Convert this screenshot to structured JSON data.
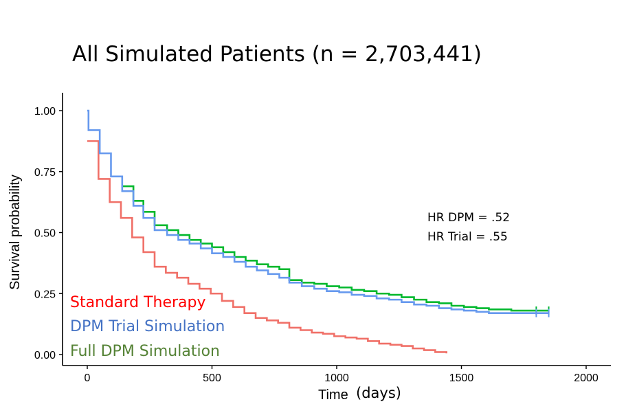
{
  "chart_data": {
    "type": "line",
    "title": "All Simulated Patients (n = 2,703,441)",
    "xlabel": "Time",
    "xlabel_suffix": "(days)",
    "ylabel": "Survival probability",
    "xlim": [
      -90,
      2100
    ],
    "ylim": [
      -0.05,
      1.05
    ],
    "x_ticks": [
      0,
      500,
      1000,
      1500,
      2000
    ],
    "y_ticks": [
      0.0,
      0.25,
      0.5,
      0.75,
      1.0
    ],
    "y_tick_labels": [
      "0.00",
      "0.25",
      "0.50",
      "0.75",
      "1.00"
    ],
    "annotations": [
      "HR DPM = .52",
      "HR Trial = .55"
    ],
    "legend_position": "bottom-left",
    "series": [
      {
        "name": "Standard Therapy",
        "color": "#f07068",
        "legend_color": "#ff0000",
        "x": [
          0,
          45,
          90,
          135,
          180,
          225,
          270,
          315,
          360,
          405,
          450,
          495,
          540,
          585,
          630,
          675,
          720,
          765,
          810,
          855,
          900,
          945,
          990,
          1035,
          1080,
          1125,
          1170,
          1215,
          1260,
          1305,
          1350,
          1395,
          1440
        ],
        "y": [
          0.875,
          0.72,
          0.625,
          0.56,
          0.48,
          0.42,
          0.36,
          0.335,
          0.315,
          0.29,
          0.27,
          0.25,
          0.22,
          0.195,
          0.17,
          0.15,
          0.14,
          0.13,
          0.11,
          0.1,
          0.09,
          0.085,
          0.075,
          0.07,
          0.065,
          0.055,
          0.045,
          0.04,
          0.035,
          0.025,
          0.018,
          0.01,
          0.005
        ]
      },
      {
        "name": "DPM Trial Simulation",
        "color": "#6699ee",
        "legend_color": "#4472c4",
        "x": [
          0,
          5,
          50,
          95,
          140,
          185,
          225,
          270,
          320,
          365,
          410,
          455,
          500,
          545,
          590,
          635,
          680,
          725,
          770,
          810,
          860,
          910,
          960,
          1010,
          1060,
          1110,
          1160,
          1210,
          1260,
          1310,
          1360,
          1410,
          1460,
          1510,
          1560,
          1610,
          1660,
          1700,
          1750,
          1800,
          1850
        ],
        "y": [
          1.0,
          0.92,
          0.825,
          0.73,
          0.67,
          0.61,
          0.56,
          0.51,
          0.49,
          0.47,
          0.455,
          0.435,
          0.415,
          0.4,
          0.38,
          0.36,
          0.345,
          0.33,
          0.315,
          0.295,
          0.28,
          0.27,
          0.26,
          0.255,
          0.245,
          0.24,
          0.23,
          0.225,
          0.215,
          0.205,
          0.2,
          0.19,
          0.185,
          0.18,
          0.175,
          0.17,
          0.17,
          0.17,
          0.17,
          0.17,
          0.17
        ],
        "censor_x": [
          1800,
          1850
        ]
      },
      {
        "name": "Full DPM Simulation",
        "color": "#00b82d",
        "legend_color": "#548235",
        "x": [
          140,
          185,
          225,
          270,
          320,
          365,
          410,
          455,
          500,
          545,
          590,
          635,
          680,
          725,
          770,
          810,
          860,
          910,
          960,
          1010,
          1060,
          1110,
          1160,
          1210,
          1260,
          1310,
          1360,
          1410,
          1460,
          1510,
          1560,
          1610,
          1660,
          1700,
          1750,
          1800,
          1850
        ],
        "y": [
          0.69,
          0.63,
          0.585,
          0.53,
          0.51,
          0.49,
          0.47,
          0.455,
          0.44,
          0.42,
          0.4,
          0.385,
          0.37,
          0.36,
          0.35,
          0.305,
          0.295,
          0.29,
          0.28,
          0.275,
          0.265,
          0.26,
          0.25,
          0.245,
          0.235,
          0.225,
          0.215,
          0.21,
          0.2,
          0.195,
          0.19,
          0.185,
          0.185,
          0.18,
          0.18,
          0.18,
          0.18
        ],
        "censor_x": [
          1800,
          1850
        ]
      }
    ]
  }
}
